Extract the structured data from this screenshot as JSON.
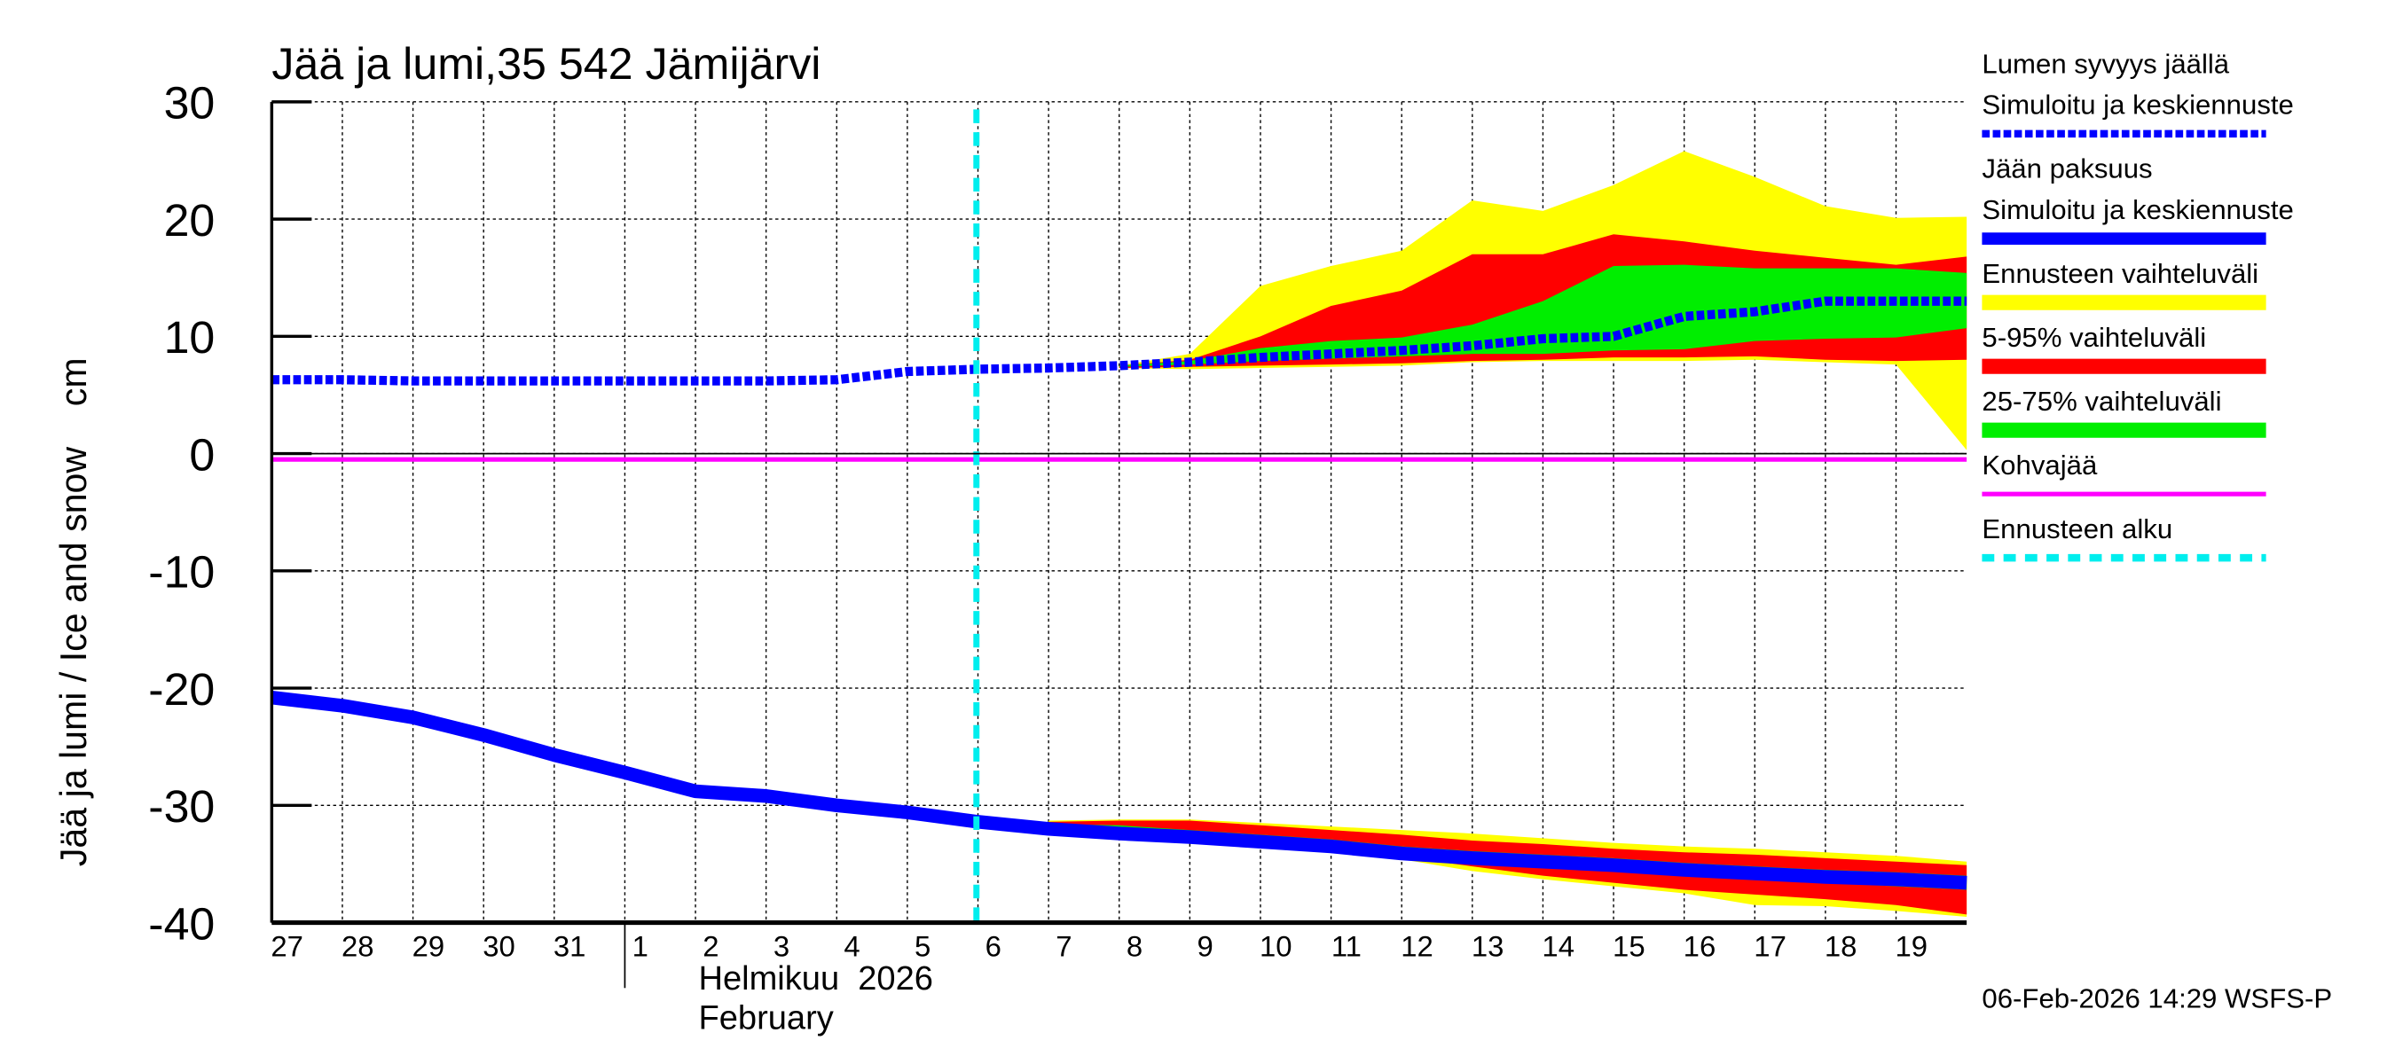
{
  "chart_data": {
    "type": "area",
    "title": "Jää ja lumi,35 542 Jämijärvi",
    "ylabel": "Jää ja lumi / Ice and snow    cm",
    "ylim": [
      -40,
      30
    ],
    "yticks": [
      30,
      20,
      10,
      0,
      -10,
      -20,
      -30,
      -40
    ],
    "grid": true,
    "legend_placement": "right",
    "x_day_labels": [
      "27",
      "28",
      "29",
      "30",
      "31",
      "1",
      "2",
      "3",
      "4",
      "5",
      "6",
      "7",
      "8",
      "9",
      "10",
      "11",
      "12",
      "13",
      "14",
      "15",
      "16",
      "17",
      "18",
      "19"
    ],
    "x_month_label": "Helmikuu  2026",
    "x_month_label_en": "February",
    "x_range": [
      "2026-01-27",
      "2026-02-20"
    ],
    "forecast_start": "2026-02-06",
    "kohvajaa_value": -0.5,
    "footer": "06-Feb-2026 14:29 WSFS-P",
    "colors": {
      "snow": "#0000ff",
      "ice": "#0000ff",
      "range": "#ffff00",
      "p5_95": "#ff0000",
      "p25_75": "#00ee00",
      "kohvajaa": "#ff00ff",
      "forecast_start": "#00eeee"
    },
    "legend": [
      {
        "label1": "Lumen syvyys jäällä",
        "label2": "Simuloitu ja keskiennuste",
        "color": "#0000ff",
        "style": "dotted"
      },
      {
        "label1": "Jään paksuus",
        "label2": "Simuloitu ja keskiennuste",
        "color": "#0000ff",
        "style": "solid"
      },
      {
        "label1": "Ennusteen vaihteluväli",
        "color": "#ffff00",
        "style": "band"
      },
      {
        "label1": "5-95% vaihteluväli",
        "color": "#ff0000",
        "style": "band"
      },
      {
        "label1": "25-75% vaihteluväli",
        "color": "#00ee00",
        "style": "band"
      },
      {
        "label1": "Kohvajää",
        "color": "#ff00ff",
        "style": "thin"
      },
      {
        "label1": "Ennusteen alku",
        "color": "#00eeee",
        "style": "dashed"
      }
    ],
    "snow_depth": {
      "dates": [
        "01-27",
        "01-28",
        "01-29",
        "01-30",
        "01-31",
        "02-01",
        "02-02",
        "02-03",
        "02-04",
        "02-05",
        "02-06",
        "02-07",
        "02-08",
        "02-09",
        "02-10",
        "02-11",
        "02-12",
        "02-13",
        "02-14",
        "02-15",
        "02-16",
        "02-17",
        "02-18",
        "02-19",
        "02-20"
      ],
      "values": [
        6.3,
        6.3,
        6.2,
        6.2,
        6.2,
        6.2,
        6.2,
        6.2,
        6.3,
        7.0,
        7.2,
        7.3,
        7.5,
        7.8,
        8.2,
        8.5,
        8.8,
        9.2,
        9.8,
        10.0,
        11.7,
        12.1,
        13.0,
        13.0,
        13.0
      ]
    },
    "snow_bands": {
      "dates": [
        "02-08",
        "02-09",
        "02-10",
        "02-11",
        "02-12",
        "02-13",
        "02-14",
        "02-15",
        "02-16",
        "02-17",
        "02-18",
        "02-19",
        "02-20"
      ],
      "range_max": [
        7.5,
        8.5,
        14.3,
        16.0,
        17.3,
        21.6,
        20.7,
        22.9,
        25.8,
        23.6,
        21.1,
        20.1,
        20.2
      ],
      "range_min": [
        7.3,
        7.2,
        7.3,
        7.4,
        7.5,
        7.8,
        7.9,
        7.9,
        7.9,
        8.0,
        7.8,
        7.6,
        0.3
      ],
      "p95": [
        7.5,
        8.0,
        10.0,
        12.6,
        13.9,
        17.0,
        17.0,
        18.7,
        18.1,
        17.3,
        16.7,
        16.1,
        16.8
      ],
      "p5": [
        7.3,
        7.4,
        7.5,
        7.6,
        7.7,
        7.9,
        8.0,
        8.2,
        8.2,
        8.3,
        8.0,
        7.9,
        8.0
      ],
      "p75": [
        7.5,
        7.9,
        9.0,
        9.6,
        9.9,
        11.0,
        13.0,
        16.0,
        16.1,
        15.8,
        15.8,
        15.8,
        15.4
      ],
      "p25": [
        7.4,
        7.6,
        7.9,
        8.1,
        8.3,
        8.5,
        8.5,
        8.8,
        8.9,
        9.6,
        9.8,
        9.9,
        10.7
      ]
    },
    "ice_thickness": {
      "dates": [
        "01-27",
        "01-28",
        "01-29",
        "01-30",
        "01-31",
        "02-01",
        "02-02",
        "02-03",
        "02-04",
        "02-05",
        "02-06",
        "02-07",
        "02-08",
        "02-09",
        "02-10",
        "02-11",
        "02-12",
        "02-13",
        "02-14",
        "02-15",
        "02-16",
        "02-17",
        "02-18",
        "02-19",
        "02-20"
      ],
      "values": [
        -20.8,
        -21.5,
        -22.5,
        -24.0,
        -25.7,
        -27.2,
        -28.8,
        -29.2,
        -30.0,
        -30.6,
        -31.4,
        -32.0,
        -32.4,
        -32.7,
        -33.1,
        -33.5,
        -34.1,
        -34.5,
        -34.8,
        -35.1,
        -35.5,
        -35.8,
        -36.1,
        -36.3,
        -36.6
      ]
    },
    "ice_bands": {
      "dates": [
        "02-07",
        "02-08",
        "02-09",
        "02-10",
        "02-11",
        "02-12",
        "02-13",
        "02-14",
        "02-15",
        "02-16",
        "02-17",
        "02-18",
        "02-19",
        "02-20"
      ],
      "range_max": [
        -31.3,
        -31.2,
        -31.2,
        -31.5,
        -31.8,
        -32.1,
        -32.4,
        -32.8,
        -33.2,
        -33.5,
        -33.7,
        -34.0,
        -34.3,
        -34.8
      ],
      "range_min": [
        -31.5,
        -32.3,
        -33.1,
        -33.3,
        -34.0,
        -34.6,
        -35.6,
        -36.3,
        -36.9,
        -37.5,
        -38.5,
        -38.6,
        -39.0,
        -39.5
      ],
      "p95": [
        -31.4,
        -31.3,
        -31.3,
        -31.7,
        -32.1,
        -32.5,
        -33.0,
        -33.3,
        -33.7,
        -34.0,
        -34.2,
        -34.5,
        -34.8,
        -35.1
      ],
      "p5": [
        -31.5,
        -32.2,
        -32.9,
        -33.2,
        -33.8,
        -34.4,
        -35.2,
        -36.0,
        -36.6,
        -37.2,
        -37.6,
        -38.0,
        -38.5,
        -39.3
      ],
      "p75": [
        -31.6,
        -31.7,
        -32.1,
        -32.5,
        -32.9,
        -33.5,
        -33.9,
        -34.2,
        -34.5,
        -34.9,
        -35.2,
        -35.5,
        -35.7,
        -36.0
      ],
      "p25": [
        -31.8,
        -32.3,
        -32.7,
        -33.1,
        -33.6,
        -34.3,
        -34.8,
        -35.2,
        -35.6,
        -35.9,
        -36.3,
        -36.6,
        -36.9,
        -37.2
      ]
    }
  }
}
